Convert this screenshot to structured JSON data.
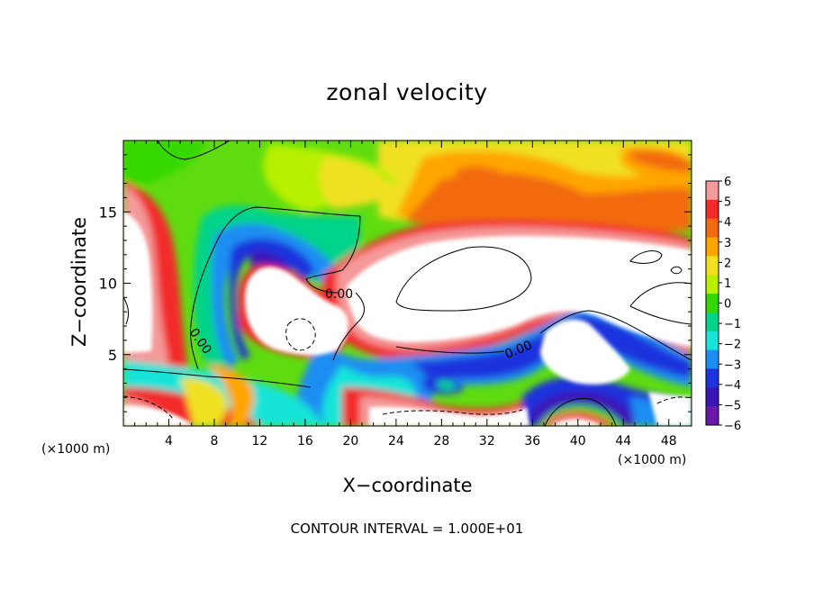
{
  "chart_data": {
    "type": "heatmap",
    "title": "zonal velocity",
    "xlabel": "X−coordinate",
    "ylabel": "Z−coordinate",
    "x_unit_label": "(×1000 m)",
    "footnote": "CONTOUR INTERVAL = 1.000E+01",
    "xlim": [
      0,
      50
    ],
    "ylim": [
      0,
      20
    ],
    "x_ticks": [
      4,
      8,
      12,
      16,
      20,
      24,
      28,
      32,
      36,
      40,
      44,
      48
    ],
    "y_ticks": [
      5,
      10,
      15
    ],
    "colorbar": {
      "range": [
        -6,
        6
      ],
      "ticks": [
        6,
        5,
        4,
        3,
        2,
        1,
        0,
        -1,
        -2,
        -3,
        -4,
        -5,
        -6
      ],
      "colors": [
        "#f49a9a",
        "#f22a2a",
        "#f26a10",
        "#ffa500",
        "#f0e020",
        "#b8f000",
        "#34d800",
        "#00d38a",
        "#16e4d8",
        "#1a8ef2",
        "#1c33dd",
        "#3a16b8",
        "#6a18a8"
      ],
      "out_of_range_color": "#ffffff"
    },
    "contour_labels": [
      "0.00",
      "0.00",
      "0.00"
    ],
    "contour_interval": "1.000E+01"
  }
}
